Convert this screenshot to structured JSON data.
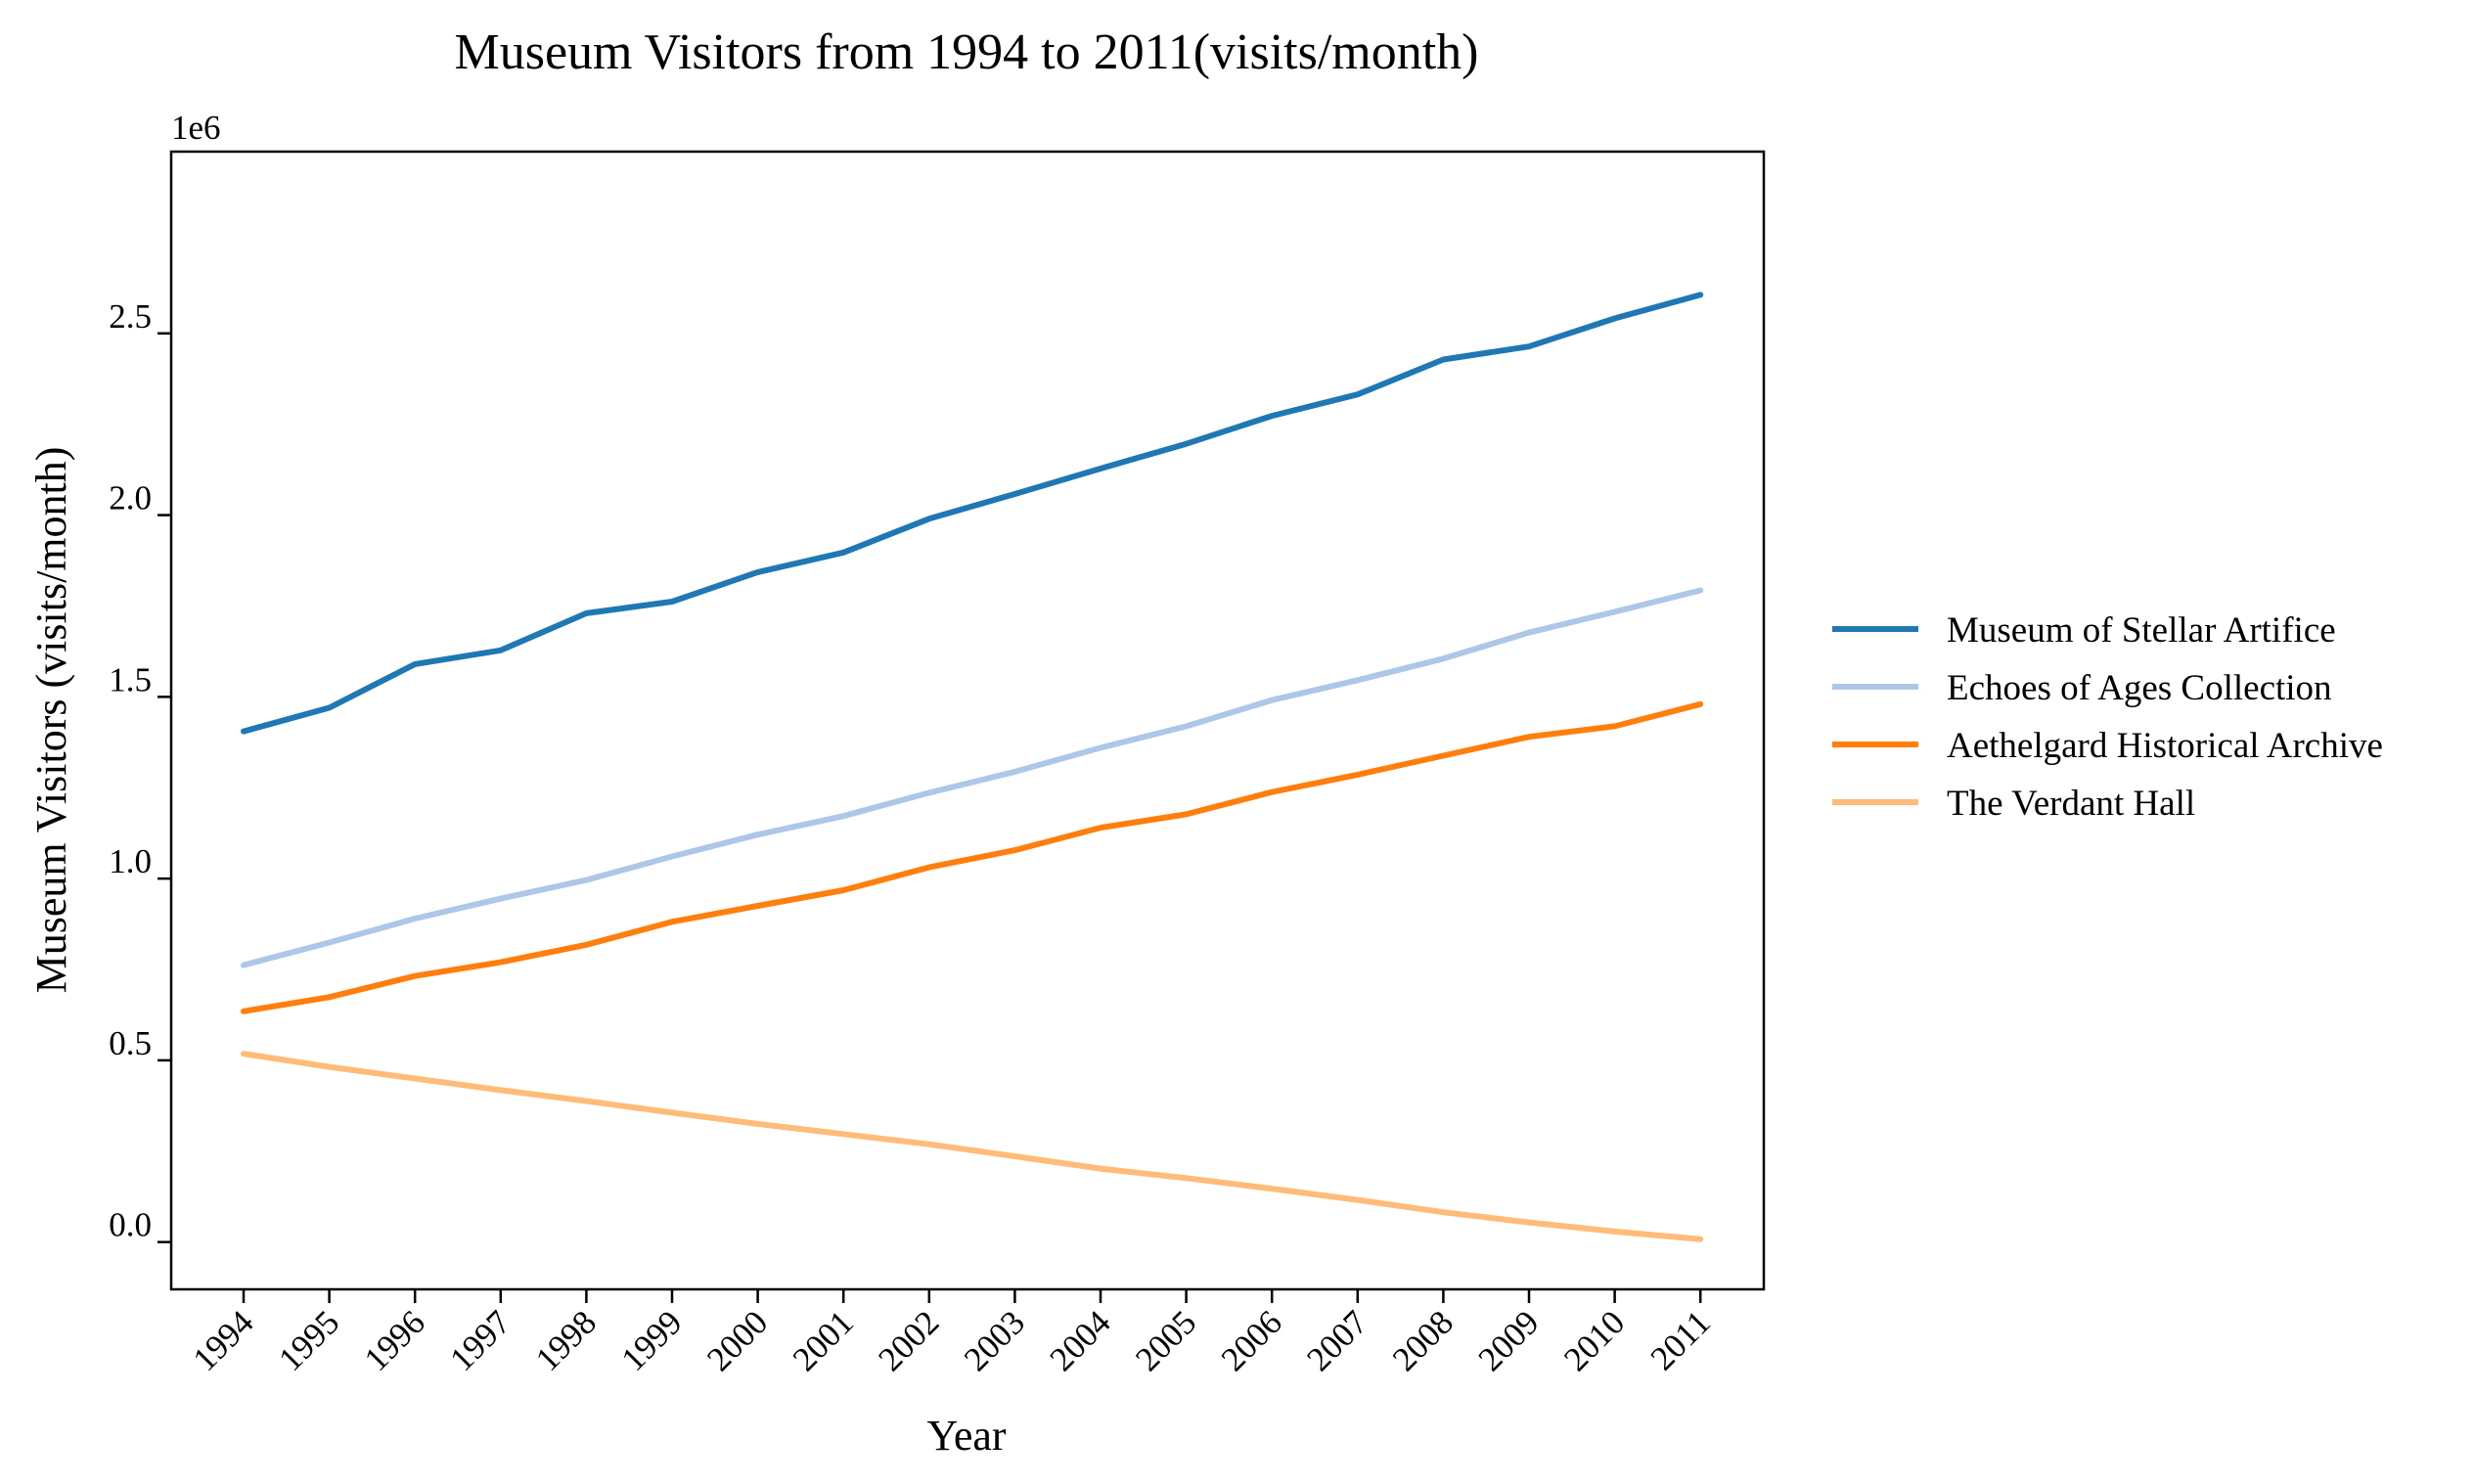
{
  "chart_data": {
    "type": "line",
    "title": "Museum Visitors from 1994 to 2011(visits/month)",
    "xlabel": "Year",
    "ylabel": "Museum Visitors (visits/month)",
    "y_offset_label": "1e6",
    "x": [
      "1994",
      "1995",
      "1996",
      "1997",
      "1998",
      "1999",
      "2000",
      "2001",
      "2002",
      "2003",
      "2004",
      "2005",
      "2006",
      "2007",
      "2008",
      "2009",
      "2010",
      "2011"
    ],
    "y_ticks": [
      {
        "value": 0.0,
        "label": "0.0"
      },
      {
        "value": 0.5,
        "label": "0.5"
      },
      {
        "value": 1.0,
        "label": "1.0"
      },
      {
        "value": 1.5,
        "label": "1.5"
      },
      {
        "value": 2.0,
        "label": "2.0"
      },
      {
        "value": 2.5,
        "label": "2.5"
      }
    ],
    "ylim": [
      -0.13,
      3.0
    ],
    "y_scale_factor": 1000000,
    "grid": false,
    "legend_position": "right",
    "series": [
      {
        "name": "Museum of Stellar Artifice",
        "color": "#1f77b4",
        "values": [
          1405000,
          1470000,
          1590000,
          1628000,
          1730000,
          1762000,
          1843000,
          1897000,
          1990000,
          2058000,
          2128000,
          2196000,
          2273000,
          2332000,
          2428000,
          2464000,
          2541000,
          2606000
        ]
      },
      {
        "name": "Echoes of Ages Collection",
        "color": "#aec7e8",
        "values": [
          762000,
          824000,
          890000,
          945000,
          996000,
          1061000,
          1121000,
          1172000,
          1236000,
          1294000,
          1360000,
          1419000,
          1491000,
          1546000,
          1605000,
          1677000,
          1734000,
          1793000
        ]
      },
      {
        "name": "Aethelgard Historical Archive",
        "color": "#ff7f0e",
        "values": [
          635000,
          674000,
          732000,
          770000,
          818000,
          881000,
          925000,
          968000,
          1031000,
          1078000,
          1140000,
          1177000,
          1238000,
          1286000,
          1338000,
          1390000,
          1419000,
          1480000
        ]
      },
      {
        "name": "The Verdant Hall",
        "color": "#ffbb78",
        "values": [
          518000,
          482000,
          450000,
          418000,
          388000,
          356000,
          325000,
          297000,
          269000,
          236000,
          202000,
          176000,
          147000,
          116000,
          82000,
          54000,
          29000,
          8000
        ]
      }
    ]
  }
}
